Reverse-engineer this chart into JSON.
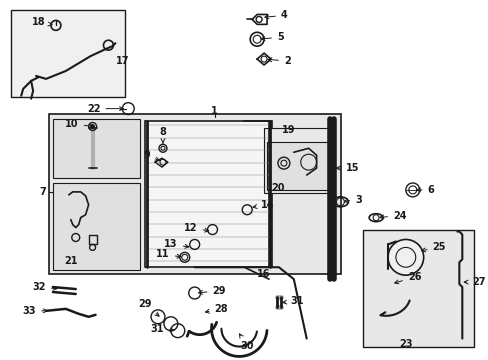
{
  "bg": "#ffffff",
  "lc": "#1a1a1a",
  "gray_light": "#e8e8e8",
  "gray_med": "#d0d0d0",
  "gray_dark": "#b0b0b0",
  "lw_main": 1.0,
  "lw_thick": 2.0,
  "lw_thin": 0.6,
  "fs": 7.0,
  "labels": {
    "1": [
      215,
      108,
      215,
      115,
      "right"
    ],
    "2": [
      313,
      63,
      303,
      63,
      "right"
    ],
    "3": [
      352,
      202,
      342,
      202,
      "right"
    ],
    "4": [
      299,
      18,
      289,
      18,
      "right"
    ],
    "5": [
      272,
      40,
      262,
      40,
      "right"
    ],
    "6": [
      430,
      193,
      420,
      193,
      "right"
    ],
    "7": [
      50,
      192,
      60,
      192,
      "left"
    ],
    "8": [
      163,
      132,
      163,
      142,
      "right"
    ],
    "9": [
      163,
      155,
      163,
      163,
      "right"
    ],
    "10": [
      92,
      130,
      102,
      130,
      "right"
    ],
    "11": [
      175,
      258,
      185,
      258,
      "right"
    ],
    "12": [
      205,
      228,
      215,
      228,
      "right"
    ],
    "13": [
      183,
      242,
      193,
      242,
      "right"
    ],
    "14": [
      255,
      208,
      245,
      208,
      "left"
    ],
    "15": [
      350,
      168,
      338,
      168,
      "left"
    ],
    "16": [
      265,
      272,
      265,
      265,
      "right"
    ],
    "17": [
      110,
      58,
      100,
      63,
      "right"
    ],
    "18": [
      42,
      22,
      52,
      26,
      "right"
    ],
    "19": [
      295,
      133,
      285,
      143,
      "right"
    ],
    "20": [
      285,
      185,
      285,
      185,
      "center"
    ],
    "21": [
      92,
      245,
      92,
      245,
      "center"
    ],
    "22": [
      105,
      108,
      118,
      108,
      "right"
    ],
    "23": [
      408,
      340,
      408,
      340,
      "center"
    ],
    "24": [
      393,
      218,
      383,
      218,
      "left"
    ],
    "25": [
      432,
      248,
      422,
      253,
      "left"
    ],
    "26": [
      417,
      275,
      407,
      278,
      "left"
    ],
    "27": [
      465,
      283,
      455,
      283,
      "left"
    ],
    "28": [
      215,
      315,
      205,
      310,
      "right"
    ],
    "29": [
      158,
      300,
      168,
      303,
      "right"
    ],
    "29b": [
      195,
      295,
      185,
      295,
      "right"
    ],
    "30": [
      240,
      338,
      232,
      332,
      "right"
    ],
    "31a": [
      283,
      303,
      273,
      303,
      "right"
    ],
    "31b": [
      173,
      332,
      183,
      332,
      "right"
    ],
    "32": [
      50,
      295,
      60,
      292,
      "right"
    ],
    "33": [
      42,
      312,
      52,
      312,
      "right"
    ]
  }
}
